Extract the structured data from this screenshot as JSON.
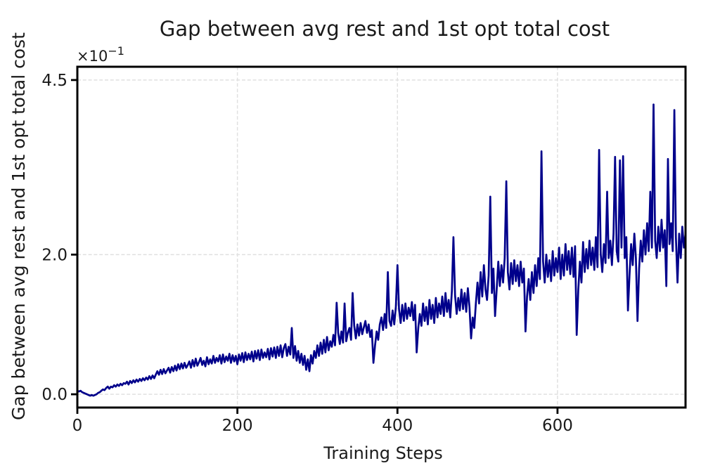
{
  "chart_data": {
    "type": "line",
    "title": "Gap between avg rest and 1st opt total cost",
    "xlabel": "Training Steps",
    "ylabel": "Gap between avg rest and 1st opt total cost",
    "offset_base": "×10",
    "offset_exponent": "−1",
    "y_scale_factor": 0.1,
    "xlim": [
      0,
      760
    ],
    "ylim": [
      -0.19,
      4.69
    ],
    "grid": true,
    "grid_style": "dashed",
    "grid_color": "#e0e0e0",
    "line_color": "#00008B",
    "axis_color": "#000000",
    "text_color": "#1a1a1a",
    "xticks": [
      {
        "value": 0,
        "label": "0"
      },
      {
        "value": 200,
        "label": "200"
      },
      {
        "value": 400,
        "label": "400"
      },
      {
        "value": 600,
        "label": "600"
      }
    ],
    "yticks": [
      {
        "value": 0.0,
        "label": "0.0"
      },
      {
        "value": 2.0,
        "label": "2.0"
      },
      {
        "value": 4.5,
        "label": "4.5"
      }
    ],
    "series": [
      {
        "name": "gap",
        "x_start": 0,
        "x_step": 2,
        "values": [
          0.05,
          0.04,
          0.05,
          0.03,
          0.02,
          0.01,
          0.0,
          -0.01,
          -0.02,
          -0.01,
          -0.02,
          -0.01,
          0.0,
          0.02,
          0.03,
          0.05,
          0.07,
          0.06,
          0.09,
          0.11,
          0.08,
          0.11,
          0.1,
          0.13,
          0.11,
          0.14,
          0.12,
          0.15,
          0.13,
          0.16,
          0.15,
          0.18,
          0.14,
          0.19,
          0.16,
          0.2,
          0.17,
          0.21,
          0.18,
          0.22,
          0.19,
          0.23,
          0.2,
          0.24,
          0.21,
          0.26,
          0.22,
          0.27,
          0.23,
          0.28,
          0.33,
          0.28,
          0.35,
          0.29,
          0.36,
          0.3,
          0.34,
          0.38,
          0.31,
          0.39,
          0.33,
          0.41,
          0.34,
          0.43,
          0.36,
          0.44,
          0.37,
          0.45,
          0.38,
          0.42,
          0.47,
          0.38,
          0.49,
          0.4,
          0.51,
          0.41,
          0.46,
          0.52,
          0.42,
          0.48,
          0.4,
          0.53,
          0.43,
          0.5,
          0.44,
          0.55,
          0.45,
          0.52,
          0.47,
          0.56,
          0.44,
          0.57,
          0.46,
          0.54,
          0.48,
          0.58,
          0.45,
          0.56,
          0.47,
          0.55,
          0.43,
          0.57,
          0.48,
          0.59,
          0.46,
          0.6,
          0.49,
          0.58,
          0.5,
          0.61,
          0.47,
          0.62,
          0.51,
          0.63,
          0.49,
          0.64,
          0.52,
          0.6,
          0.53,
          0.65,
          0.5,
          0.66,
          0.54,
          0.67,
          0.52,
          0.68,
          0.55,
          0.7,
          0.53,
          0.66,
          0.72,
          0.55,
          0.68,
          0.57,
          0.95,
          0.52,
          0.69,
          0.48,
          0.62,
          0.45,
          0.58,
          0.42,
          0.55,
          0.35,
          0.5,
          0.33,
          0.56,
          0.44,
          0.62,
          0.52,
          0.7,
          0.55,
          0.74,
          0.58,
          0.78,
          0.6,
          0.82,
          0.63,
          0.76,
          0.68,
          0.85,
          0.7,
          1.31,
          0.88,
          0.72,
          0.9,
          0.74,
          1.3,
          0.76,
          0.88,
          0.95,
          0.78,
          1.45,
          0.98,
          0.8,
          1.0,
          0.84,
          1.02,
          0.86,
          0.96,
          1.05,
          0.88,
          1.0,
          0.82,
          0.92,
          0.45,
          0.7,
          0.9,
          0.78,
          1.0,
          1.1,
          0.92,
          1.15,
          0.95,
          1.75,
          1.05,
          0.98,
          1.2,
          1.0,
          1.25,
          1.85,
          1.22,
          1.02,
          1.28,
          1.05,
          1.3,
          1.08,
          1.24,
          1.12,
          1.32,
          1.06,
          1.28,
          0.6,
          0.95,
          1.15,
          0.98,
          1.3,
          1.05,
          1.25,
          1.0,
          1.35,
          1.08,
          1.28,
          1.02,
          1.38,
          1.1,
          1.3,
          1.15,
          1.4,
          1.12,
          1.45,
          1.18,
          1.35,
          1.1,
          1.48,
          2.25,
          1.42,
          1.15,
          1.38,
          1.2,
          1.5,
          1.22,
          1.45,
          1.18,
          1.52,
          1.25,
          0.8,
          1.1,
          0.95,
          1.3,
          1.6,
          1.3,
          1.75,
          1.4,
          1.85,
          1.5,
          1.35,
          1.7,
          2.83,
          1.45,
          1.8,
          1.12,
          1.5,
          1.9,
          1.55,
          1.85,
          1.6,
          1.95,
          3.05,
          1.75,
          1.5,
          1.88,
          1.58,
          1.92,
          1.62,
          1.85,
          1.55,
          1.9,
          1.6,
          1.8,
          0.9,
          1.4,
          1.65,
          1.35,
          1.75,
          1.45,
          1.85,
          1.55,
          1.95,
          1.65,
          3.48,
          1.9,
          1.6,
          2.0,
          1.68,
          1.92,
          1.62,
          2.05,
          1.7,
          1.95,
          1.75,
          2.1,
          1.65,
          2.0,
          1.7,
          2.15,
          1.78,
          2.05,
          1.72,
          2.1,
          1.68,
          2.12,
          0.85,
          1.5,
          1.9,
          1.6,
          2.18,
          1.75,
          2.08,
          1.8,
          2.2,
          1.85,
          2.1,
          1.78,
          2.25,
          1.82,
          3.5,
          2.0,
          1.75,
          2.15,
          1.88,
          2.9,
          1.95,
          2.2,
          1.85,
          2.3,
          3.4,
          2.05,
          1.9,
          3.35,
          2.1,
          3.41,
          1.95,
          2.25,
          1.2,
          1.7,
          2.15,
          1.85,
          2.3,
          1.95,
          1.05,
          1.8,
          2.2,
          1.9,
          2.35,
          2.0,
          2.45,
          2.05,
          2.9,
          2.1,
          4.15,
          2.2,
          1.95,
          2.4,
          2.05,
          2.5,
          2.1,
          2.35,
          1.55,
          3.37,
          2.15,
          2.45,
          2.05,
          4.07,
          2.25,
          1.6,
          2.3,
          1.95,
          2.4,
          2.1,
          2.3
        ]
      }
    ]
  }
}
